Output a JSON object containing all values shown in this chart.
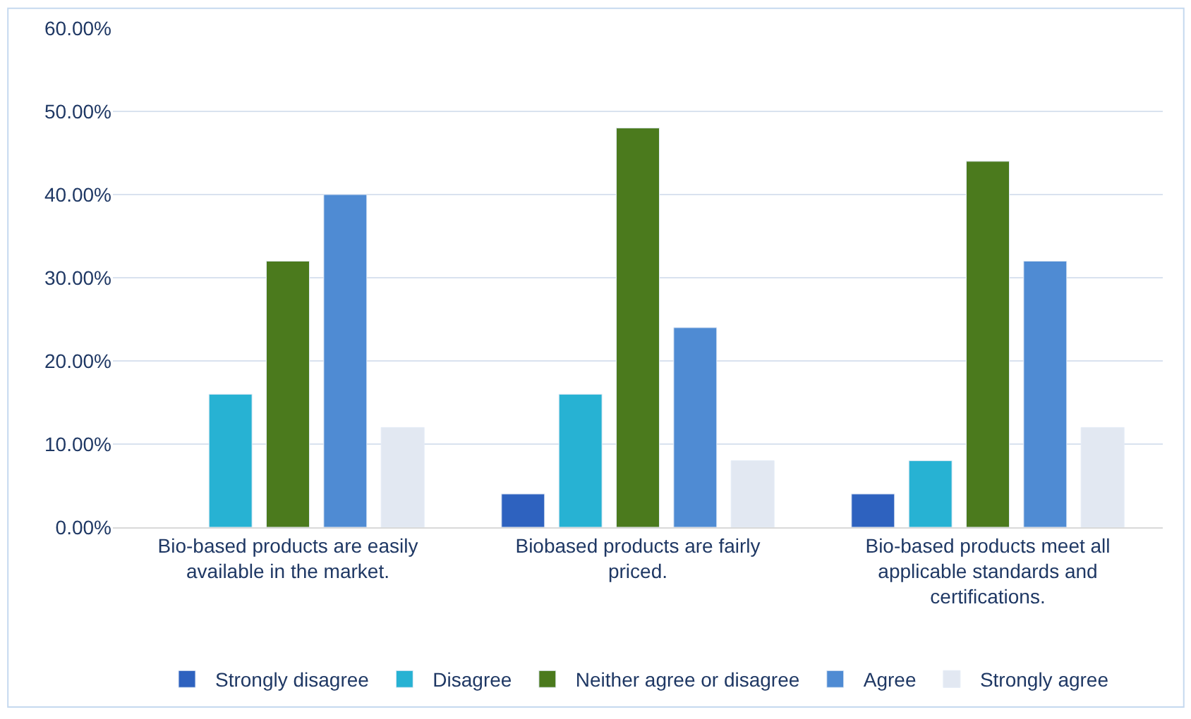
{
  "chart_data": {
    "type": "bar",
    "categories": [
      "Bio-based products are easily available in the market.",
      "Biobased products are fairly priced.",
      "Bio-based products meet all applicable standards and certifications."
    ],
    "series": [
      {
        "name": "Strongly disagree",
        "color": "#2e62bf",
        "values": [
          null,
          4,
          4
        ]
      },
      {
        "name": "Disagree",
        "color": "#27b2d3",
        "values": [
          16,
          16,
          8
        ]
      },
      {
        "name": "Neither agree or disagree",
        "color": "#4b7a1d",
        "values": [
          32,
          48,
          44
        ]
      },
      {
        "name": "Agree",
        "color": "#4f8bd3",
        "values": [
          40,
          24,
          32
        ]
      },
      {
        "name": "Strongly agree",
        "color": "#e2e8f2",
        "values": [
          12,
          8,
          12
        ]
      }
    ],
    "ylim": [
      0,
      60
    ],
    "yticks": [
      {
        "value": 0,
        "label": "0.00%"
      },
      {
        "value": 10,
        "label": "10.00%"
      },
      {
        "value": 20,
        "label": "20.00%"
      },
      {
        "value": 30,
        "label": "30.00%"
      },
      {
        "value": 40,
        "label": "40.00%"
      },
      {
        "value": 50,
        "label": "50.00%"
      },
      {
        "value": 60,
        "label": "60.00%"
      }
    ],
    "grid": "y",
    "legend": "bottom"
  }
}
